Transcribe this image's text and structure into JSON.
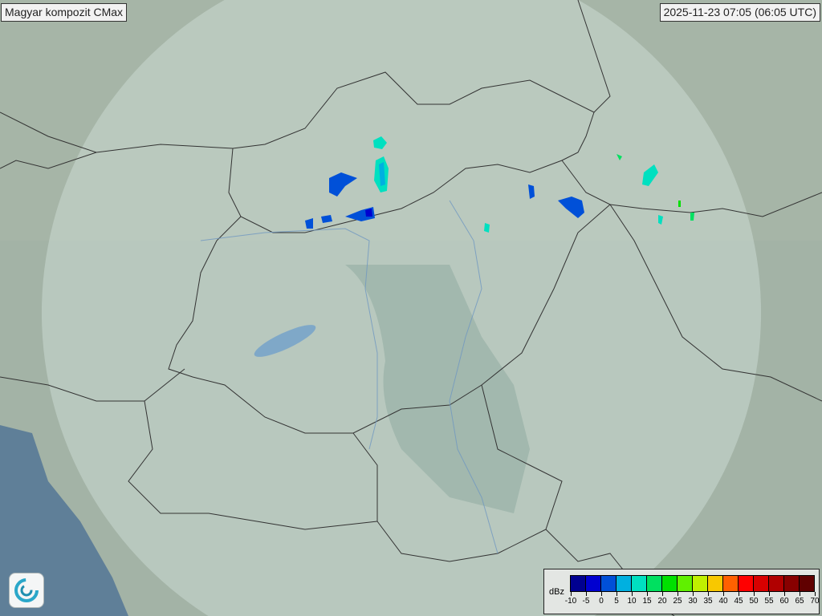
{
  "header": {
    "title": "Magyar kompozit  CMax",
    "timestamp": "2025-11-23 07:05 (06:05 UTC)"
  },
  "legend": {
    "unit": "dBz",
    "ticks": [
      "-10",
      "-5",
      "0",
      "5",
      "10",
      "15",
      "20",
      "25",
      "30",
      "35",
      "40",
      "45",
      "50",
      "55",
      "60",
      "65",
      "70"
    ],
    "colors": [
      "#000090",
      "#0000d0",
      "#0050d8",
      "#00b0e0",
      "#00e0c0",
      "#00e060",
      "#00e000",
      "#60f000",
      "#c0f000",
      "#f8c800",
      "#ff6000",
      "#ff0000",
      "#d80000",
      "#b00000",
      "#880000",
      "#600000"
    ]
  },
  "map": {
    "background_color": "#9fb0a4",
    "coverage_color": "#c8d6d0",
    "logo_icon": "met-service-swirl-icon"
  }
}
